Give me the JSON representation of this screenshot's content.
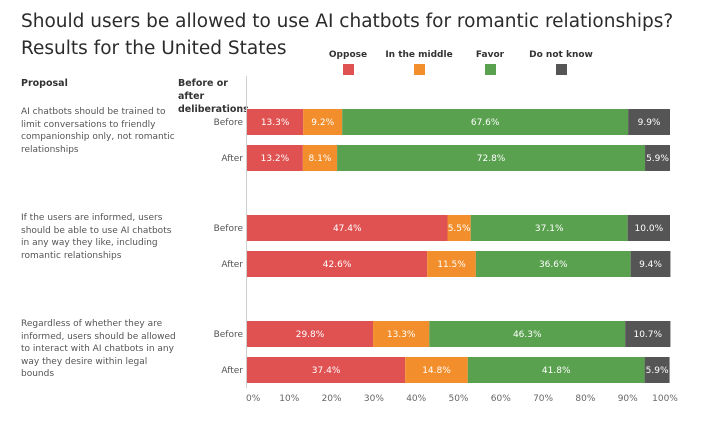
{
  "chart_data": {
    "type": "bar",
    "orientation": "horizontal",
    "stacked": true,
    "title": "Should users be allowed to use AI chatbots for romantic relationships? Results for the United States",
    "column_headers": {
      "proposal": "Proposal",
      "when": "Before or after deliberations"
    },
    "legend": [
      {
        "name": "Oppose",
        "color": "#e05252"
      },
      {
        "name": "In the middle",
        "color": "#f28e2b"
      },
      {
        "name": "Favor",
        "color": "#59a14f"
      },
      {
        "name": "Do not know",
        "color": "#555555"
      }
    ],
    "legend_placement": "top",
    "groups": [
      {
        "proposal": "AI chatbots should be trained to limit conversations to friendly companionship only, not romantic relationships",
        "rows": [
          {
            "label": "Before",
            "values": [
              13.3,
              9.2,
              67.6,
              9.9
            ]
          },
          {
            "label": "After",
            "values": [
              13.2,
              8.1,
              72.8,
              5.9
            ]
          }
        ]
      },
      {
        "proposal": "If the users are informed, users should be able to use AI chatbots in any way they like, including romantic relationships",
        "rows": [
          {
            "label": "Before",
            "values": [
              47.4,
              5.5,
              37.1,
              10.0
            ]
          },
          {
            "label": "After",
            "values": [
              42.6,
              11.5,
              36.6,
              9.4
            ]
          }
        ]
      },
      {
        "proposal": "Regardless of whether they are informed, users should be allowed to interact with AI chatbots in any way they desire within legal bounds",
        "rows": [
          {
            "label": "Before",
            "values": [
              29.8,
              13.3,
              46.3,
              10.7
            ]
          },
          {
            "label": "After",
            "values": [
              37.4,
              14.8,
              41.8,
              5.9
            ]
          }
        ]
      }
    ],
    "x_axis": {
      "range": [
        0,
        100
      ],
      "ticks": [
        0,
        10,
        20,
        30,
        40,
        50,
        60,
        70,
        80,
        90,
        100
      ],
      "tick_labels": [
        "0%",
        "10%",
        "20%",
        "30%",
        "40%",
        "50%",
        "60%",
        "70%",
        "80%",
        "90%",
        "100%"
      ]
    },
    "grid": false
  }
}
